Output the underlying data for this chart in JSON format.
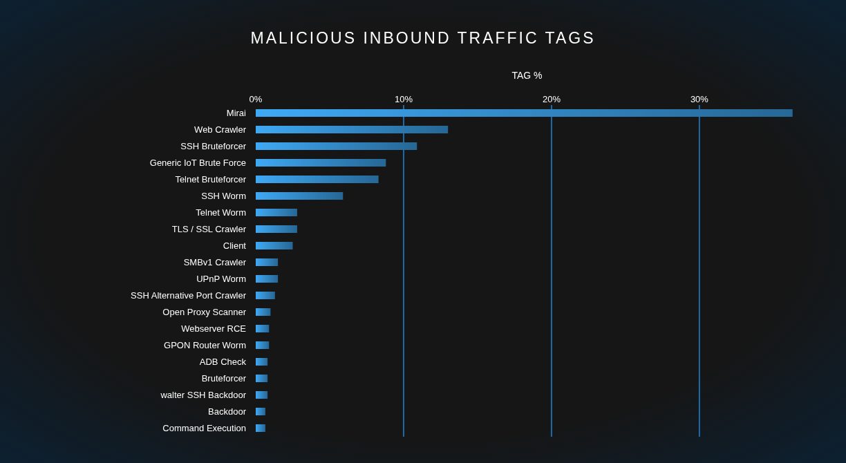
{
  "chart_data": {
    "type": "bar",
    "orientation": "horizontal",
    "title": "MALICIOUS INBOUND TRAFFIC TAGS",
    "xlabel": "TAG %",
    "categories": [
      "Mirai",
      "Web Crawler",
      "SSH Bruteforcer",
      "Generic IoT Brute Force",
      "Telnet Bruteforcer",
      "SSH Worm",
      "Telnet Worm",
      "TLS / SSL Crawler",
      "Client",
      "SMBv1 Crawler",
      "UPnP Worm",
      "SSH Alternative Port Crawler",
      "Open Proxy Scanner",
      "Webserver RCE",
      "GPON Router Worm",
      "ADB Check",
      "Bruteforcer",
      "walter SSH Backdoor",
      "Backdoor",
      "Command Execution"
    ],
    "values": [
      36.3,
      13.0,
      10.9,
      8.8,
      8.3,
      5.9,
      2.8,
      2.8,
      2.5,
      1.5,
      1.5,
      1.3,
      1.0,
      0.9,
      0.9,
      0.8,
      0.8,
      0.8,
      0.65,
      0.65
    ],
    "color": "#3fa9f5",
    "xlim": [
      0,
      36.5
    ],
    "xticks": [
      {
        "value": 0,
        "label": "0%"
      },
      {
        "value": 10,
        "label": "10%"
      },
      {
        "value": 20,
        "label": "20%"
      },
      {
        "value": 30,
        "label": "30%"
      }
    ],
    "grid": "x"
  }
}
